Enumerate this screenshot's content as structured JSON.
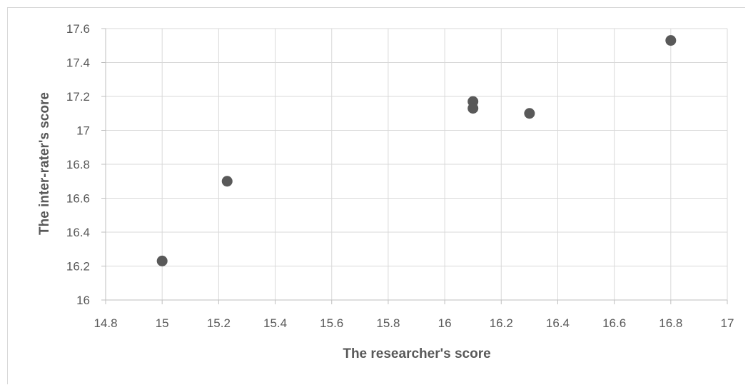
{
  "chart_data": {
    "type": "scatter",
    "title": "",
    "xlabel": "The researcher's score",
    "ylabel": "The inter-rater's score",
    "xlim": [
      14.8,
      17
    ],
    "ylim": [
      16,
      17.6
    ],
    "x_ticks": [
      "14.8",
      "15",
      "15.2",
      "15.4",
      "15.6",
      "15.8",
      "16",
      "16.2",
      "16.4",
      "16.6",
      "16.8",
      "17"
    ],
    "y_ticks": [
      "16",
      "16.2",
      "16.4",
      "16.6",
      "16.8",
      "17",
      "17.2",
      "17.4",
      "17.6"
    ],
    "grid": true,
    "marker_color": "#595959",
    "series": [
      {
        "points": [
          {
            "x": 15.0,
            "y": 16.23
          },
          {
            "x": 15.23,
            "y": 16.7
          },
          {
            "x": 16.1,
            "y": 17.17
          },
          {
            "x": 16.1,
            "y": 17.13
          },
          {
            "x": 16.3,
            "y": 17.1
          },
          {
            "x": 16.8,
            "y": 17.53
          }
        ]
      }
    ]
  }
}
